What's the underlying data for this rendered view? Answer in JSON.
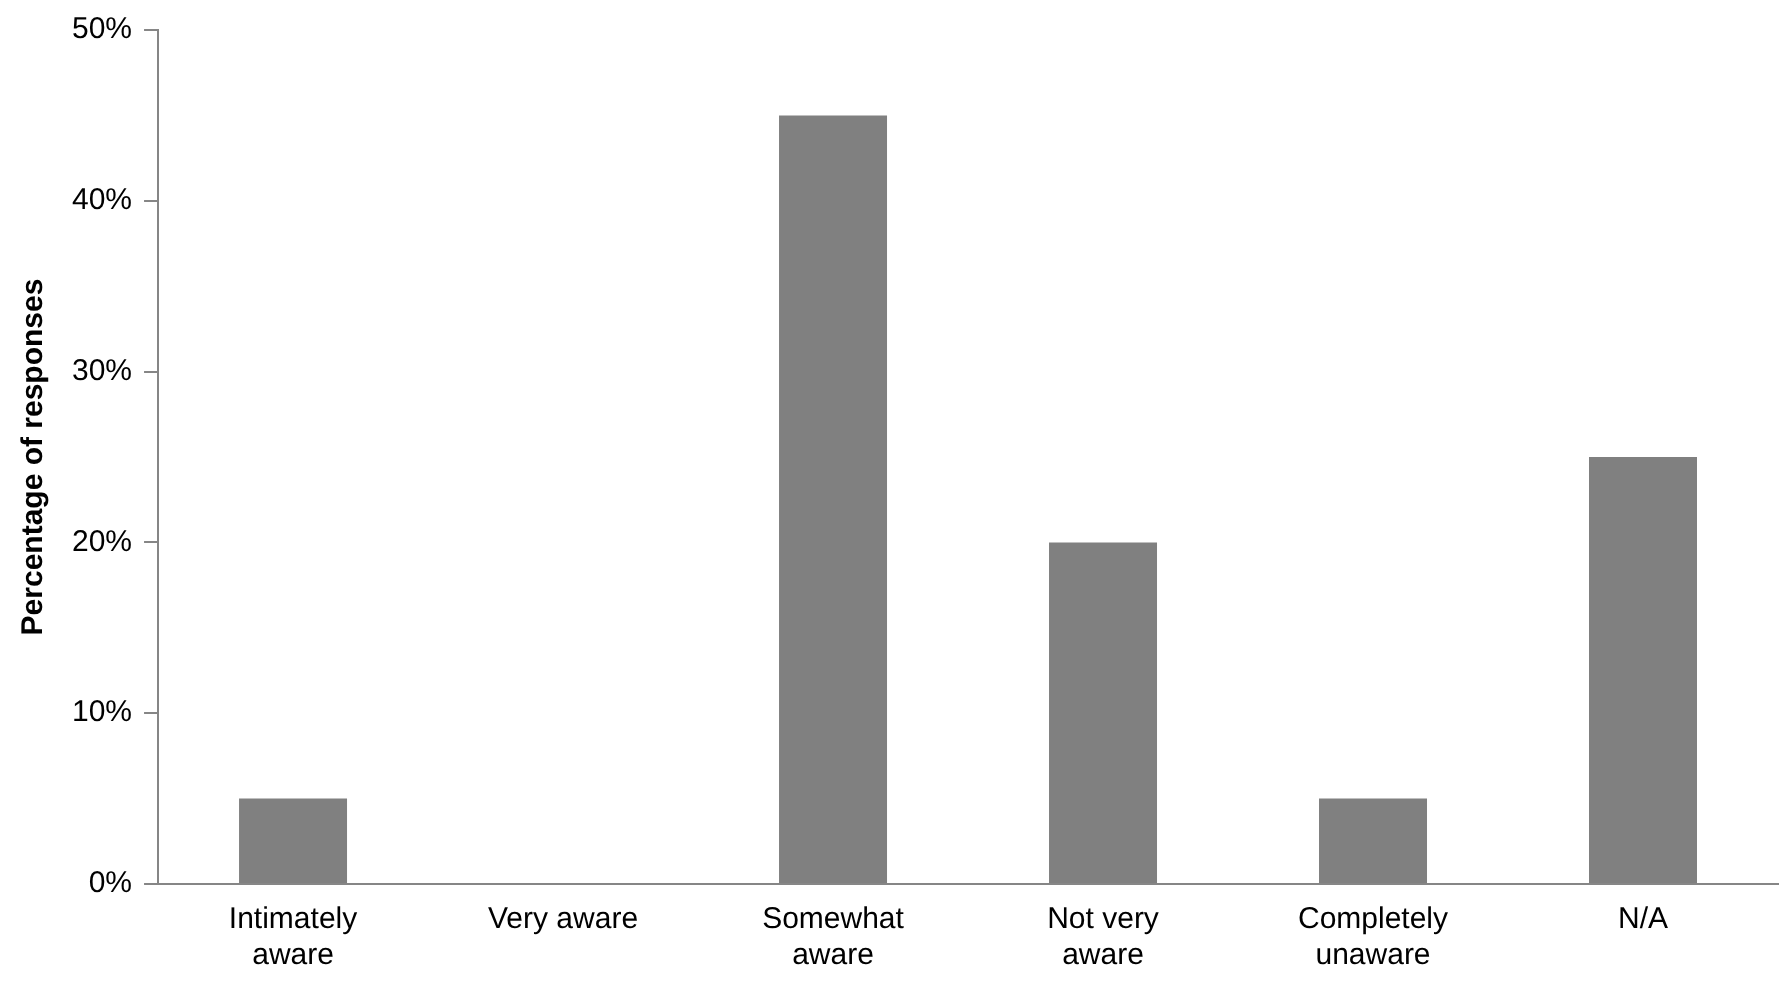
{
  "chart_data": {
    "type": "bar",
    "ylabel": "Percentage of responses",
    "categories": [
      "Intimately aware",
      "Very aware",
      "Somewhat aware",
      "Not very aware",
      "Completely unaware",
      "N/A"
    ],
    "values": [
      5,
      0,
      45,
      20,
      5,
      25
    ],
    "color": "#808080",
    "ylim": [
      0,
      50
    ],
    "yticks": [
      {
        "value": 0,
        "label": "0%"
      },
      {
        "value": 10,
        "label": "10%"
      },
      {
        "value": 20,
        "label": "20%"
      },
      {
        "value": 30,
        "label": "30%"
      },
      {
        "value": 40,
        "label": "40%"
      },
      {
        "value": 50,
        "label": "50%"
      }
    ],
    "grid": false,
    "legend": false
  }
}
